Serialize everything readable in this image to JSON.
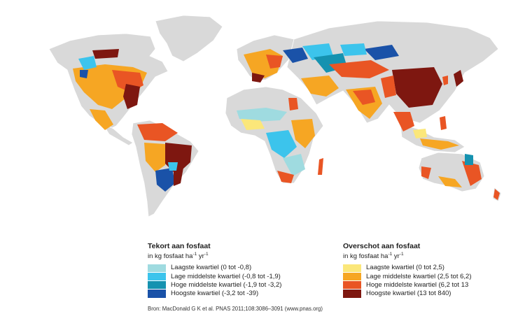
{
  "map": {
    "land_color": "#d9d9d9",
    "border_color": "#ffffff"
  },
  "legend_deficit": {
    "title": "Tekort aan fosfaat",
    "unit_text": "in kg fosfaat ha",
    "unit_exp1": "-1",
    "unit_mid": " yr",
    "unit_exp2": "-1",
    "items": [
      {
        "label": "Laagste kwartiel (0 tot -0,8)",
        "color": "#9fdbe0"
      },
      {
        "label": "Lage middelste kwartiel (-0,8 tot -1,9)",
        "color": "#3cc4ec"
      },
      {
        "label": "Hoge middelste kwartiel (-1,9 tot -3,2)",
        "color": "#1592b0"
      },
      {
        "label": "Hoogste kwartiel (-3,2 tot -39)",
        "color": "#1a52a8"
      }
    ]
  },
  "legend_surplus": {
    "title": "Overschot aan fosfaat",
    "unit_text": "in kg fosfaat ha",
    "unit_exp1": "-1",
    "unit_mid": " yr",
    "unit_exp2": "-1",
    "items": [
      {
        "label": "Laagste kwartiel (0 tot 2,5)",
        "color": "#fbe77a"
      },
      {
        "label": "Lage middelste kwartiel (2,5 tot 6,2)",
        "color": "#f6a623"
      },
      {
        "label": "Hoge middelste kwartiel (6,2 tot 13",
        "color": "#e95524"
      },
      {
        "label": "Hoogste kwartiel (13 tot 840)",
        "color": "#7e1710"
      }
    ]
  },
  "source": "Bron: MacDonald G K et al. PNAS 2011;108:3086–3091 (www.pnas.org)"
}
